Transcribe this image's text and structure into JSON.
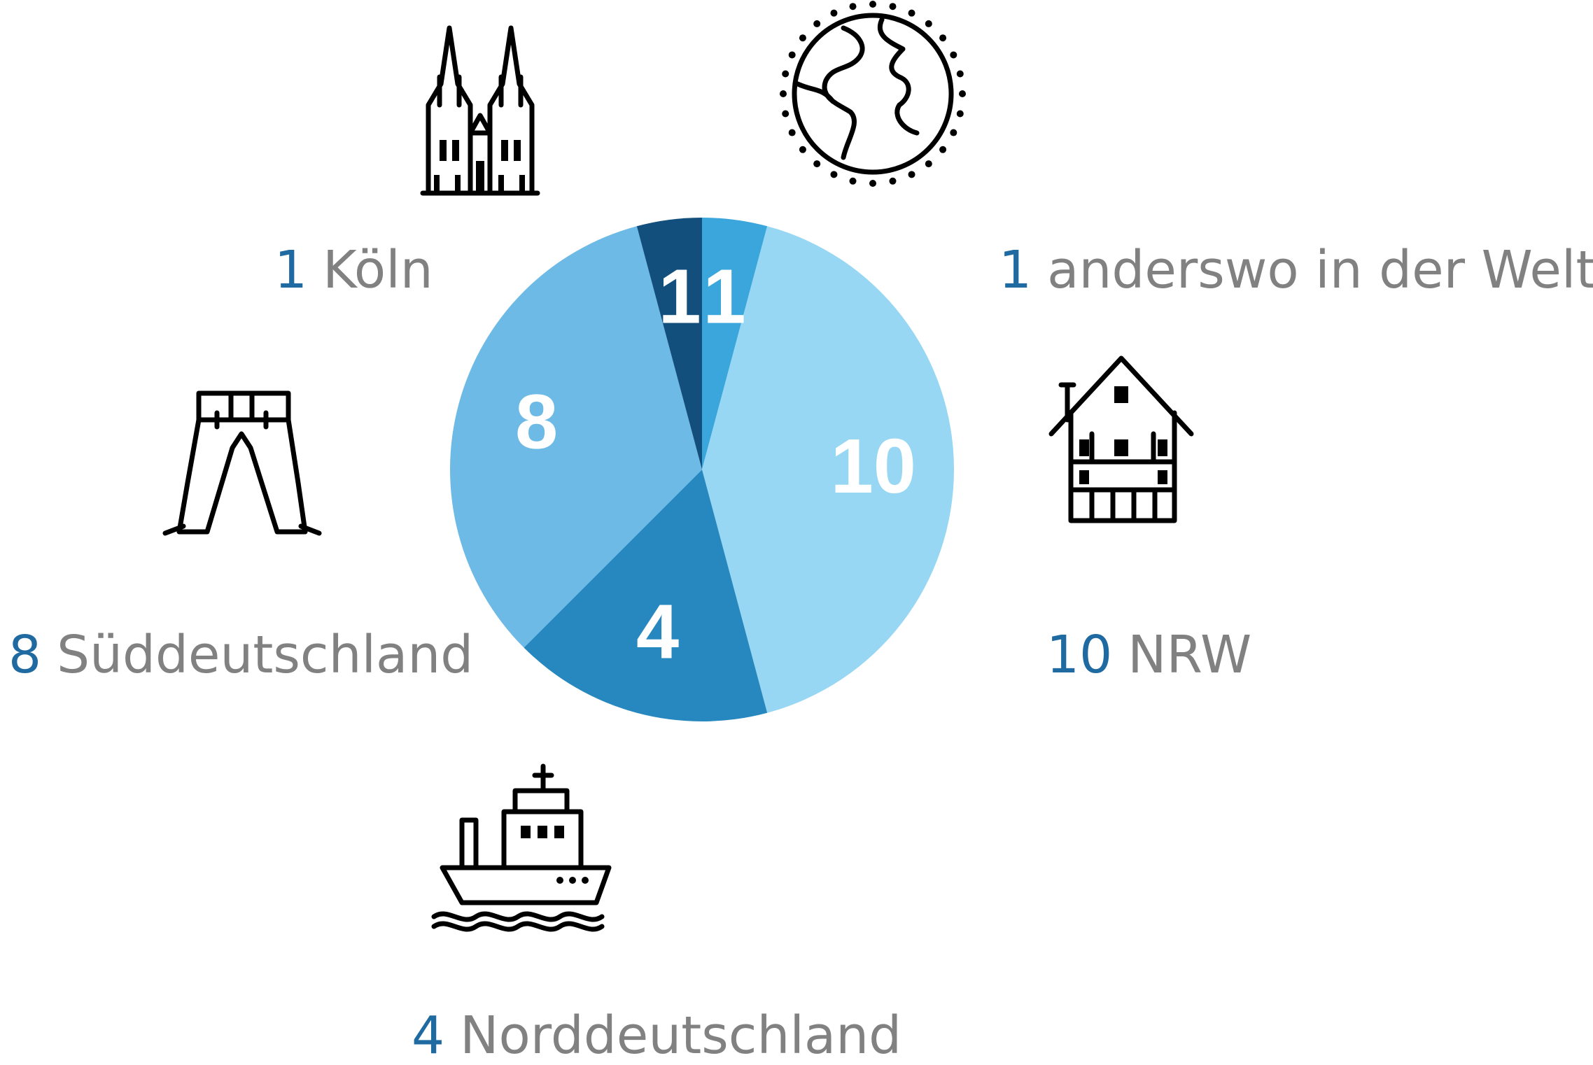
{
  "chart_data": {
    "type": "pie",
    "categories": [
      "anderswo in der Welt",
      "NRW",
      "Norddeutschland",
      "Süddeutschland",
      "Köln"
    ],
    "values": [
      1,
      10,
      4,
      8,
      1
    ],
    "colors": [
      "#3aa6dc",
      "#97d7f4",
      "#2788c0",
      "#6dbae6",
      "#124f7c"
    ]
  }
}
